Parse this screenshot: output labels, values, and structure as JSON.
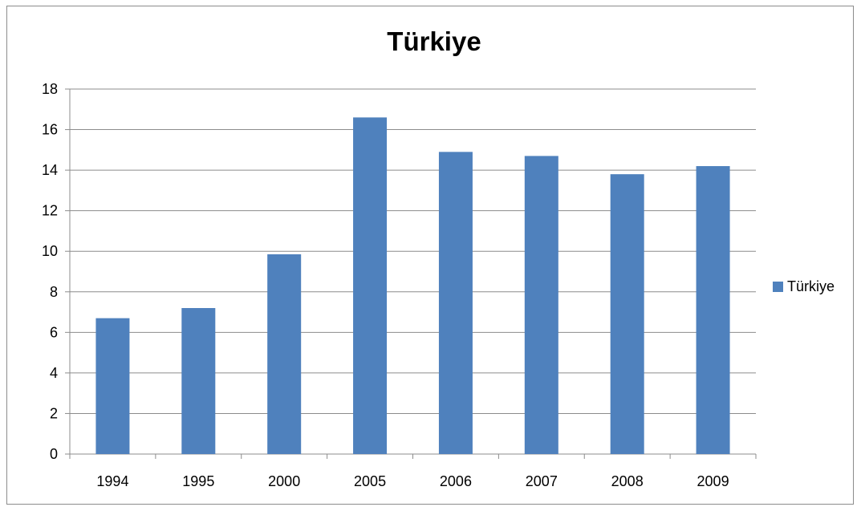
{
  "chart_data": {
    "type": "bar",
    "title": "Türkiye",
    "categories": [
      "1994",
      "1995",
      "2000",
      "2005",
      "2006",
      "2007",
      "2008",
      "2009"
    ],
    "series": [
      {
        "name": "Türkiye",
        "values": [
          6.7,
          7.2,
          9.85,
          16.6,
          14.9,
          14.7,
          13.8,
          14.2
        ],
        "color": "#4f81bd"
      }
    ],
    "ylim": [
      0,
      18
    ],
    "yticks": [
      0,
      2,
      4,
      6,
      8,
      10,
      12,
      14,
      16,
      18
    ],
    "grid": true,
    "legend_position": "right",
    "xlabel": "",
    "ylabel": ""
  }
}
